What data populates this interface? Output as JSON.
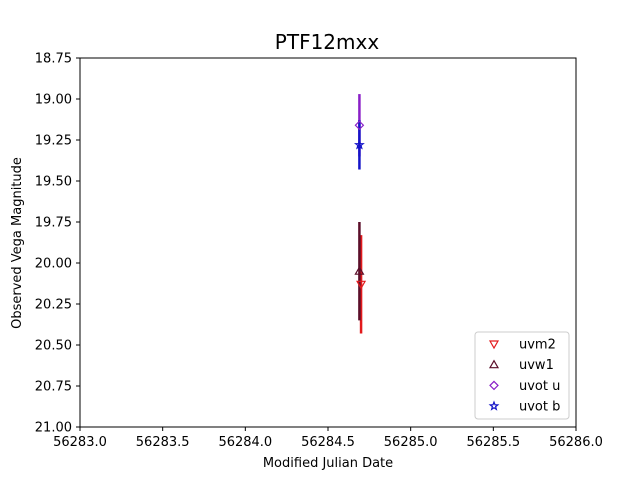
{
  "chart_data": {
    "type": "scatter",
    "title": "PTF12mxx",
    "xlabel": "Modified Julian Date",
    "ylabel": "Observed Vega Magnitude",
    "xlim": [
      56283.0,
      56286.0
    ],
    "ylim": [
      21.0,
      18.75
    ],
    "y_inverted": true,
    "grid": false,
    "legend_position": "lower-right",
    "x_ticks": [
      "56283.0",
      "56283.5",
      "56284.0",
      "56284.5",
      "56285.0",
      "56285.5",
      "56286.0"
    ],
    "y_ticks": [
      "18.75",
      "19.00",
      "19.25",
      "19.50",
      "19.75",
      "20.00",
      "20.25",
      "20.50",
      "20.75",
      "21.00"
    ],
    "series": [
      {
        "name": "uvm2",
        "marker": "triangle-down",
        "color": "#e31a1c",
        "points": [
          {
            "x": 56284.7,
            "y": 20.13,
            "err": 0.3
          }
        ]
      },
      {
        "name": "uvw1",
        "marker": "triangle-up",
        "color": "#5b0f2a",
        "points": [
          {
            "x": 56284.69,
            "y": 20.05,
            "err": 0.3
          }
        ]
      },
      {
        "name": "uvot u",
        "marker": "diamond",
        "color": "#8a1fc7",
        "points": [
          {
            "x": 56284.69,
            "y": 19.16,
            "err": 0.19
          }
        ]
      },
      {
        "name": "uvot b",
        "marker": "star",
        "color": "#1414c8",
        "points": [
          {
            "x": 56284.69,
            "y": 19.28,
            "err": 0.15
          }
        ]
      }
    ]
  }
}
